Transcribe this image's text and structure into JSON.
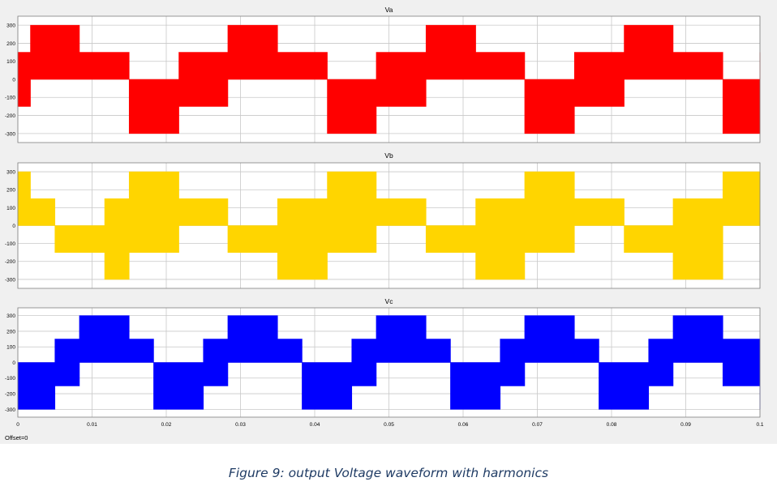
{
  "caption": "Figure 9: output Voltage waveform with harmonics",
  "offset_label": "Offset=0",
  "colors": {
    "background": "#f0f0f0",
    "plot_bg": "#ffffff",
    "grid": "#c8c8c8",
    "frame": "#808080"
  },
  "chart_data": [
    {
      "type": "area",
      "title": "Va",
      "color": "#ff0000",
      "xlim": [
        0,
        0.1
      ],
      "ylim": [
        -350,
        350
      ],
      "xticks": [
        0,
        0.01,
        0.02,
        0.03,
        0.04,
        0.05,
        0.06,
        0.07,
        0.08,
        0.09,
        0.1
      ],
      "xtick_labels": [],
      "yticks": [
        -300,
        -200,
        -100,
        0,
        100,
        200,
        300
      ],
      "grid": true,
      "series": [
        {
          "x": [
            0,
            0.0017,
            0.0083,
            0.015,
            0.0217,
            0.0283,
            0.035,
            0.0417,
            0.0483,
            0.055,
            0.0617,
            0.0683,
            0.075,
            0.0817,
            0.0883,
            0.095,
            0.1
          ],
          "upper": [
            150,
            300,
            150,
            0,
            150,
            300,
            150,
            0,
            150,
            300,
            150,
            0,
            150,
            300,
            150,
            0,
            150
          ],
          "lower": [
            -150,
            0,
            0,
            -300,
            -150,
            0,
            0,
            -300,
            -150,
            0,
            0,
            -300,
            -150,
            0,
            0,
            -300,
            -150
          ]
        }
      ]
    },
    {
      "type": "area",
      "title": "Vb",
      "color": "#ffd500",
      "xlim": [
        0,
        0.1
      ],
      "ylim": [
        -350,
        350
      ],
      "xticks": [
        0,
        0.01,
        0.02,
        0.03,
        0.04,
        0.05,
        0.06,
        0.07,
        0.08,
        0.09,
        0.1
      ],
      "xtick_labels": [],
      "yticks": [
        -300,
        -200,
        -100,
        0,
        100,
        200,
        300
      ],
      "grid": true,
      "series": [
        {
          "x": [
            0,
            0.0017,
            0.005,
            0.0117,
            0.015,
            0.0217,
            0.0283,
            0.035,
            0.0417,
            0.0483,
            0.055,
            0.0617,
            0.0683,
            0.075,
            0.0817,
            0.0883,
            0.095,
            0.1
          ],
          "upper": [
            300,
            150,
            0,
            150,
            300,
            150,
            0,
            150,
            300,
            150,
            0,
            150,
            300,
            150,
            0,
            150,
            300,
            300
          ],
          "lower": [
            0,
            0,
            -150,
            -300,
            -150,
            0,
            -150,
            -300,
            -150,
            0,
            -150,
            -300,
            -150,
            0,
            -150,
            -300,
            0,
            0
          ]
        }
      ]
    },
    {
      "type": "area",
      "title": "Vc",
      "color": "#0000ff",
      "xlim": [
        0,
        0.1
      ],
      "ylim": [
        -350,
        350
      ],
      "xticks": [
        0,
        0.01,
        0.02,
        0.03,
        0.04,
        0.05,
        0.06,
        0.07,
        0.08,
        0.09,
        0.1
      ],
      "xtick_labels": [
        "0",
        "0.01",
        "0.02",
        "0.03",
        "0.04",
        "0.05",
        "0.06",
        "0.07",
        "0.08",
        "0.09",
        "0.1"
      ],
      "yticks": [
        -300,
        -200,
        -100,
        0,
        100,
        200,
        300
      ],
      "grid": true,
      "series": [
        {
          "x": [
            0,
            0.0017,
            0.005,
            0.0083,
            0.015,
            0.0183,
            0.025,
            0.0283,
            0.035,
            0.0383,
            0.045,
            0.0483,
            0.055,
            0.0583,
            0.065,
            0.0683,
            0.075,
            0.0783,
            0.085,
            0.0883,
            0.095,
            0.1
          ],
          "upper": [
            0,
            0,
            150,
            300,
            150,
            0,
            150,
            300,
            150,
            0,
            150,
            300,
            150,
            0,
            150,
            300,
            150,
            0,
            150,
            300,
            150,
            0
          ],
          "lower": [
            -300,
            -300,
            -150,
            0,
            0,
            -300,
            -150,
            0,
            0,
            -300,
            -150,
            0,
            0,
            -300,
            -150,
            0,
            0,
            -300,
            -150,
            0,
            -150,
            -300
          ]
        }
      ]
    }
  ]
}
